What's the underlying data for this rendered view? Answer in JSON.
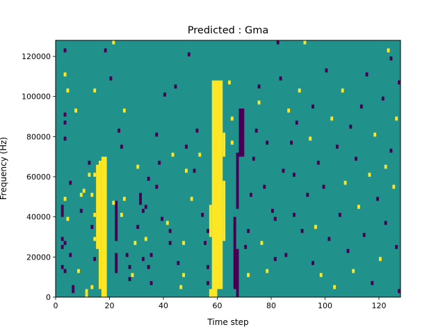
{
  "chart_data": {
    "type": "heatmap",
    "title": "Predicted : Gma",
    "xlabel": "Time step",
    "ylabel": "Frequency (Hz)",
    "xlim": [
      0,
      128
    ],
    "ylim": [
      0,
      128000
    ],
    "x_ticks": [
      0,
      20,
      40,
      60,
      80,
      100,
      120
    ],
    "y_ticks": [
      0,
      20000,
      40000,
      60000,
      80000,
      100000,
      120000
    ],
    "x_tick_labels": [
      "0",
      "20",
      "40",
      "60",
      "80",
      "100",
      "120"
    ],
    "y_tick_labels": [
      "0",
      "20000",
      "40000",
      "60000",
      "80000",
      "100000",
      "120000"
    ],
    "grid": false,
    "colormap": "viridis",
    "colors": {
      "low": "#440154",
      "mid": "#21918c",
      "high": "#fde725"
    },
    "background_level": "mid",
    "frequency_bins": 64,
    "bands": [
      {
        "level": "high",
        "x": [
          17,
          19
        ],
        "y": [
          0,
          70000
        ]
      },
      {
        "level": "high",
        "x": [
          16,
          17
        ],
        "y": [
          4000,
          68000
        ]
      },
      {
        "level": "high",
        "x": [
          15,
          16
        ],
        "y": [
          24000,
          66000
        ]
      },
      {
        "level": "high",
        "x": [
          58,
          62
        ],
        "y": [
          4000,
          108000
        ]
      },
      {
        "level": "high",
        "x": [
          57,
          60
        ],
        "y": [
          0,
          4000
        ]
      },
      {
        "level": "high",
        "x": [
          62,
          63
        ],
        "y": [
          70000,
          82000
        ]
      },
      {
        "level": "high",
        "x": [
          62,
          63
        ],
        "y": [
          28000,
          58000
        ]
      },
      {
        "level": "high",
        "x": [
          57,
          58
        ],
        "y": [
          30000,
          46000
        ]
      },
      {
        "level": "low",
        "x": [
          66,
          68
        ],
        "y": [
          4000,
          24000
        ]
      },
      {
        "level": "low",
        "x": [
          67,
          68
        ],
        "y": [
          0,
          4000
        ]
      },
      {
        "level": "low",
        "x": [
          66,
          67
        ],
        "y": [
          24000,
          40000
        ]
      },
      {
        "level": "low",
        "x": [
          68,
          70
        ],
        "y": [
          70000,
          94000
        ]
      },
      {
        "level": "low",
        "x": [
          67,
          68
        ],
        "y": [
          44000,
          72000
        ]
      },
      {
        "level": "low",
        "x": [
          22,
          23
        ],
        "y": [
          28000,
          48000
        ]
      },
      {
        "level": "low",
        "x": [
          22,
          23
        ],
        "y": [
          12000,
          22000
        ]
      }
    ],
    "cells": [
      {
        "x": 3,
        "y": 61,
        "v": "low"
      },
      {
        "x": 3,
        "y": 45,
        "v": "low"
      },
      {
        "x": 3,
        "y": 43,
        "v": "low"
      },
      {
        "x": 3,
        "y": 39,
        "v": "low"
      },
      {
        "x": 2,
        "y": 22,
        "v": "low"
      },
      {
        "x": 2,
        "y": 21,
        "v": "low"
      },
      {
        "x": 2,
        "y": 20,
        "v": "low"
      },
      {
        "x": 2,
        "y": 7,
        "v": "low"
      },
      {
        "x": 3,
        "y": 6,
        "v": "low"
      },
      {
        "x": 2,
        "y": 12,
        "v": "low"
      },
      {
        "x": 3,
        "y": 13,
        "v": "low"
      },
      {
        "x": 2,
        "y": 14,
        "v": "low"
      },
      {
        "x": 4,
        "y": 19,
        "v": "high"
      },
      {
        "x": 3,
        "y": 24,
        "v": "high"
      },
      {
        "x": 4,
        "y": 51,
        "v": "high"
      },
      {
        "x": 3,
        "y": 55,
        "v": "high"
      },
      {
        "x": 5,
        "y": 28,
        "v": "low"
      },
      {
        "x": 6,
        "y": 1,
        "v": "low"
      },
      {
        "x": 6,
        "y": 2,
        "v": "low"
      },
      {
        "x": 5,
        "y": 10,
        "v": "low"
      },
      {
        "x": 7,
        "y": 46,
        "v": "high"
      },
      {
        "x": 8,
        "y": 6,
        "v": "high"
      },
      {
        "x": 9,
        "y": 25,
        "v": "high"
      },
      {
        "x": 9,
        "y": 21,
        "v": "low"
      },
      {
        "x": 10,
        "y": 26,
        "v": "high"
      },
      {
        "x": 11,
        "y": 0,
        "v": "high"
      },
      {
        "x": 11,
        "y": 1,
        "v": "high"
      },
      {
        "x": 12,
        "y": 30,
        "v": "high"
      },
      {
        "x": 12,
        "y": 33,
        "v": "low"
      },
      {
        "x": 13,
        "y": 25,
        "v": "high"
      },
      {
        "x": 14,
        "y": 14,
        "v": "high"
      },
      {
        "x": 14,
        "y": 9,
        "v": "low"
      },
      {
        "x": 13,
        "y": 17,
        "v": "low"
      },
      {
        "x": 14,
        "y": 30,
        "v": "high"
      },
      {
        "x": 14,
        "y": 20,
        "v": "high"
      },
      {
        "x": 13,
        "y": 2,
        "v": "high"
      },
      {
        "x": 14,
        "y": 51,
        "v": "high"
      },
      {
        "x": 18,
        "y": 61,
        "v": "low"
      },
      {
        "x": 21,
        "y": 63,
        "v": "high"
      },
      {
        "x": 20,
        "y": 54,
        "v": "low"
      },
      {
        "x": 21,
        "y": 23,
        "v": "high"
      },
      {
        "x": 23,
        "y": 41,
        "v": "low"
      },
      {
        "x": 25,
        "y": 46,
        "v": "high"
      },
      {
        "x": 24,
        "y": 37,
        "v": "low"
      },
      {
        "x": 25,
        "y": 24,
        "v": "high"
      },
      {
        "x": 24,
        "y": 20,
        "v": "high"
      },
      {
        "x": 26,
        "y": 10,
        "v": "low"
      },
      {
        "x": 27,
        "y": 7,
        "v": "low"
      },
      {
        "x": 28,
        "y": 5,
        "v": "high"
      },
      {
        "x": 27,
        "y": 4,
        "v": "low"
      },
      {
        "x": 29,
        "y": 13,
        "v": "high"
      },
      {
        "x": 30,
        "y": 32,
        "v": "high"
      },
      {
        "x": 31,
        "y": 25,
        "v": "low"
      },
      {
        "x": 31,
        "y": 24,
        "v": "low"
      },
      {
        "x": 31,
        "y": 23,
        "v": "low"
      },
      {
        "x": 30,
        "y": 17,
        "v": "low"
      },
      {
        "x": 32,
        "y": 9,
        "v": "low"
      },
      {
        "x": 33,
        "y": 14,
        "v": "high"
      },
      {
        "x": 32,
        "y": 21,
        "v": "low"
      },
      {
        "x": 33,
        "y": 22,
        "v": "low"
      },
      {
        "x": 34,
        "y": 29,
        "v": "low"
      },
      {
        "x": 34,
        "y": 7,
        "v": "low"
      },
      {
        "x": 35,
        "y": 3,
        "v": "low"
      },
      {
        "x": 35,
        "y": 10,
        "v": "low"
      },
      {
        "x": 37,
        "y": 27,
        "v": "low"
      },
      {
        "x": 37,
        "y": 40,
        "v": "low"
      },
      {
        "x": 38,
        "y": 33,
        "v": "low"
      },
      {
        "x": 40,
        "y": 50,
        "v": "low"
      },
      {
        "x": 39,
        "y": 19,
        "v": "low"
      },
      {
        "x": 41,
        "y": 18,
        "v": "high"
      },
      {
        "x": 42,
        "y": 16,
        "v": "low"
      },
      {
        "x": 43,
        "y": 35,
        "v": "high"
      },
      {
        "x": 44,
        "y": 52,
        "v": "low"
      },
      {
        "x": 42,
        "y": 13,
        "v": "low"
      },
      {
        "x": 45,
        "y": 8,
        "v": "low"
      },
      {
        "x": 46,
        "y": 2,
        "v": "high"
      },
      {
        "x": 47,
        "y": 5,
        "v": "high"
      },
      {
        "x": 47,
        "y": 13,
        "v": "high"
      },
      {
        "x": 48,
        "y": 31,
        "v": "high"
      },
      {
        "x": 48,
        "y": 37,
        "v": "low"
      },
      {
        "x": 49,
        "y": 60,
        "v": "low"
      },
      {
        "x": 50,
        "y": 24,
        "v": "high"
      },
      {
        "x": 51,
        "y": 31,
        "v": "low"
      },
      {
        "x": 52,
        "y": 41,
        "v": "low"
      },
      {
        "x": 53,
        "y": 35,
        "v": "high"
      },
      {
        "x": 54,
        "y": 20,
        "v": "low"
      },
      {
        "x": 55,
        "y": 13,
        "v": "low"
      },
      {
        "x": 56,
        "y": 16,
        "v": "low"
      },
      {
        "x": 56,
        "y": 7,
        "v": "low"
      },
      {
        "x": 56,
        "y": 3,
        "v": "low"
      },
      {
        "x": 65,
        "y": 44,
        "v": "high"
      },
      {
        "x": 65,
        "y": 38,
        "v": "high"
      },
      {
        "x": 64,
        "y": 53,
        "v": "high"
      },
      {
        "x": 70,
        "y": 12,
        "v": "low"
      },
      {
        "x": 71,
        "y": 16,
        "v": "low"
      },
      {
        "x": 71,
        "y": 5,
        "v": "high"
      },
      {
        "x": 72,
        "y": 25,
        "v": "low"
      },
      {
        "x": 73,
        "y": 34,
        "v": "low"
      },
      {
        "x": 74,
        "y": 41,
        "v": "low"
      },
      {
        "x": 75,
        "y": 52,
        "v": "low"
      },
      {
        "x": 75,
        "y": 48,
        "v": "high"
      },
      {
        "x": 76,
        "y": 13,
        "v": "high"
      },
      {
        "x": 77,
        "y": 27,
        "v": "low"
      },
      {
        "x": 78,
        "y": 38,
        "v": "low"
      },
      {
        "x": 78,
        "y": 6,
        "v": "high"
      },
      {
        "x": 80,
        "y": 21,
        "v": "low"
      },
      {
        "x": 81,
        "y": 19,
        "v": "low"
      },
      {
        "x": 81,
        "y": 9,
        "v": "low"
      },
      {
        "x": 82,
        "y": 63,
        "v": "low"
      },
      {
        "x": 83,
        "y": 54,
        "v": "low"
      },
      {
        "x": 84,
        "y": 31,
        "v": "low"
      },
      {
        "x": 85,
        "y": 10,
        "v": "low"
      },
      {
        "x": 86,
        "y": 46,
        "v": "high"
      },
      {
        "x": 87,
        "y": 38,
        "v": "low"
      },
      {
        "x": 88,
        "y": 20,
        "v": "low"
      },
      {
        "x": 88,
        "y": 30,
        "v": "low"
      },
      {
        "x": 89,
        "y": 43,
        "v": "low"
      },
      {
        "x": 90,
        "y": 51,
        "v": "high"
      },
      {
        "x": 91,
        "y": 16,
        "v": "low"
      },
      {
        "x": 92,
        "y": 63,
        "v": "high"
      },
      {
        "x": 93,
        "y": 25,
        "v": "low"
      },
      {
        "x": 94,
        "y": 39,
        "v": "high"
      },
      {
        "x": 95,
        "y": 47,
        "v": "low"
      },
      {
        "x": 95,
        "y": 8,
        "v": "low"
      },
      {
        "x": 96,
        "y": 17,
        "v": "high"
      },
      {
        "x": 97,
        "y": 33,
        "v": "low"
      },
      {
        "x": 98,
        "y": 5,
        "v": "high"
      },
      {
        "x": 99,
        "y": 27,
        "v": "low"
      },
      {
        "x": 100,
        "y": 56,
        "v": "low"
      },
      {
        "x": 101,
        "y": 14,
        "v": "low"
      },
      {
        "x": 102,
        "y": 44,
        "v": "high"
      },
      {
        "x": 103,
        "y": 2,
        "v": "high"
      },
      {
        "x": 104,
        "y": 37,
        "v": "low"
      },
      {
        "x": 105,
        "y": 20,
        "v": "low"
      },
      {
        "x": 106,
        "y": 51,
        "v": "high"
      },
      {
        "x": 107,
        "y": 28,
        "v": "high"
      },
      {
        "x": 108,
        "y": 11,
        "v": "low"
      },
      {
        "x": 109,
        "y": 42,
        "v": "low"
      },
      {
        "x": 110,
        "y": 6,
        "v": "high"
      },
      {
        "x": 111,
        "y": 34,
        "v": "low"
      },
      {
        "x": 112,
        "y": 22,
        "v": "high"
      },
      {
        "x": 113,
        "y": 47,
        "v": "low"
      },
      {
        "x": 114,
        "y": 15,
        "v": "low"
      },
      {
        "x": 115,
        "y": 55,
        "v": "low"
      },
      {
        "x": 116,
        "y": 30,
        "v": "high"
      },
      {
        "x": 117,
        "y": 3,
        "v": "low"
      },
      {
        "x": 118,
        "y": 40,
        "v": "high"
      },
      {
        "x": 119,
        "y": 24,
        "v": "low"
      },
      {
        "x": 120,
        "y": 9,
        "v": "high"
      },
      {
        "x": 121,
        "y": 49,
        "v": "low"
      },
      {
        "x": 122,
        "y": 18,
        "v": "low"
      },
      {
        "x": 123,
        "y": 61,
        "v": "high"
      },
      {
        "x": 124,
        "y": 36,
        "v": "low"
      },
      {
        "x": 125,
        "y": 27,
        "v": "high"
      },
      {
        "x": 126,
        "y": 12,
        "v": "low"
      },
      {
        "x": 127,
        "y": 53,
        "v": "low"
      },
      {
        "x": 126,
        "y": 44,
        "v": "high"
      },
      {
        "x": 127,
        "y": 1,
        "v": "low"
      },
      {
        "x": 124,
        "y": 59,
        "v": "low"
      },
      {
        "x": 122,
        "y": 32,
        "v": "high"
      }
    ]
  }
}
